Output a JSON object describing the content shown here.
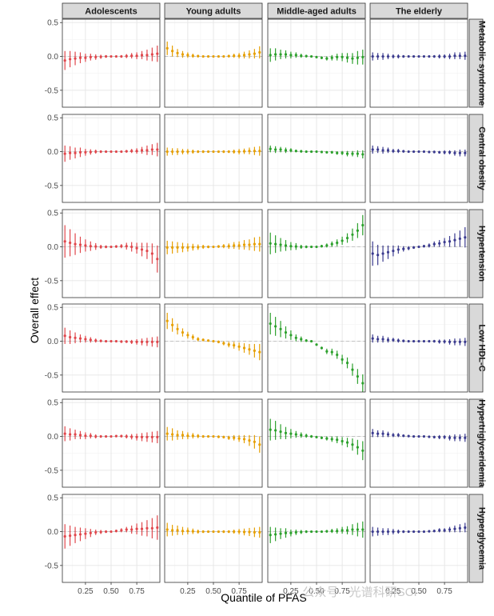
{
  "chart_data": {
    "type": "scatter",
    "title": "",
    "xlabel": "Quantile of PFAS",
    "ylabel": "Overall effect",
    "xlim": [
      0.025,
      0.975
    ],
    "ylim": [
      -0.75,
      0.55
    ],
    "x_ticks": [
      "0.25",
      "0.50",
      "0.75"
    ],
    "y_ticks": [
      "-0.5",
      "0.0",
      "0.5"
    ],
    "grid": true,
    "reference_line": 0,
    "columns": [
      {
        "name": "Adolescents",
        "color": "#E0474C"
      },
      {
        "name": "Young adults",
        "color": "#E69F00"
      },
      {
        "name": "Middle-aged adults",
        "color": "#2CA02C"
      },
      {
        "name": "The elderly",
        "color": "#3B3B8F"
      }
    ],
    "rows": [
      "Metabolic syndrome",
      "Central obesity",
      "Hypertension",
      "Low HDL-C",
      "Hypertriglyceridemia",
      "Hyperglycemia"
    ],
    "x": [
      0.05,
      0.1,
      0.15,
      0.2,
      0.25,
      0.3,
      0.35,
      0.4,
      0.45,
      0.5,
      0.55,
      0.6,
      0.65,
      0.7,
      0.75,
      0.8,
      0.85,
      0.9,
      0.95
    ],
    "panels": [
      {
        "row": "Metabolic syndrome",
        "column": "Adolescents",
        "estimate": [
          -0.06,
          -0.04,
          -0.03,
          -0.02,
          -0.02,
          -0.01,
          -0.01,
          -0.005,
          0,
          0,
          0,
          0,
          0.005,
          0.01,
          0.01,
          0.02,
          0.02,
          0.03,
          0.04
        ],
        "half_width": [
          0.14,
          0.12,
          0.1,
          0.08,
          0.06,
          0.05,
          0.04,
          0.03,
          0.02,
          0.01,
          0.01,
          0.02,
          0.03,
          0.04,
          0.05,
          0.06,
          0.08,
          0.1,
          0.12
        ]
      },
      {
        "row": "Metabolic syndrome",
        "column": "Young adults",
        "estimate": [
          0.12,
          0.08,
          0.05,
          0.03,
          0.02,
          0.01,
          0.005,
          0,
          0,
          0,
          0,
          0,
          0.005,
          0.01,
          0.01,
          0.02,
          0.03,
          0.04,
          0.06
        ],
        "half_width": [
          0.1,
          0.08,
          0.06,
          0.05,
          0.04,
          0.03,
          0.02,
          0.015,
          0.01,
          0.01,
          0.01,
          0.015,
          0.02,
          0.03,
          0.04,
          0.05,
          0.06,
          0.07,
          0.09
        ]
      },
      {
        "row": "Metabolic syndrome",
        "column": "Middle-aged adults",
        "estimate": [
          0.02,
          0.03,
          0.03,
          0.03,
          0.02,
          0.02,
          0.01,
          0.005,
          0,
          -0.01,
          -0.02,
          -0.03,
          -0.02,
          -0.01,
          -0.01,
          -0.02,
          -0.03,
          -0.02,
          -0.01
        ],
        "half_width": [
          0.1,
          0.09,
          0.07,
          0.06,
          0.05,
          0.04,
          0.03,
          0.02,
          0.01,
          0.01,
          0.02,
          0.03,
          0.04,
          0.05,
          0.06,
          0.07,
          0.08,
          0.1,
          0.11
        ]
      },
      {
        "row": "Metabolic syndrome",
        "column": "The elderly",
        "estimate": [
          0,
          0,
          0,
          0,
          0,
          0,
          0,
          0,
          0,
          0,
          0,
          0,
          0,
          0,
          0,
          0,
          0.01,
          0.01,
          0.01
        ],
        "half_width": [
          0.06,
          0.05,
          0.05,
          0.04,
          0.03,
          0.03,
          0.02,
          0.015,
          0.01,
          0.01,
          0.01,
          0.015,
          0.02,
          0.03,
          0.03,
          0.04,
          0.05,
          0.05,
          0.06
        ]
      },
      {
        "row": "Central obesity",
        "column": "Adolescents",
        "estimate": [
          -0.03,
          -0.02,
          -0.02,
          -0.01,
          -0.01,
          -0.005,
          0,
          0,
          0,
          0,
          0,
          0,
          0.005,
          0.01,
          0.01,
          0.02,
          0.02,
          0.03,
          0.03
        ],
        "half_width": [
          0.12,
          0.1,
          0.08,
          0.07,
          0.05,
          0.04,
          0.03,
          0.02,
          0.015,
          0.01,
          0.01,
          0.015,
          0.02,
          0.03,
          0.04,
          0.05,
          0.07,
          0.08,
          0.1
        ]
      },
      {
        "row": "Central obesity",
        "column": "Young adults",
        "estimate": [
          0,
          0,
          0,
          0,
          0,
          0,
          0,
          0,
          0,
          0,
          0,
          0,
          0,
          0,
          0,
          0.005,
          0.01,
          0.01,
          0.01
        ],
        "half_width": [
          0.06,
          0.05,
          0.05,
          0.04,
          0.04,
          0.03,
          0.02,
          0.02,
          0.01,
          0.01,
          0.01,
          0.02,
          0.02,
          0.03,
          0.04,
          0.04,
          0.05,
          0.06,
          0.07
        ]
      },
      {
        "row": "Central obesity",
        "column": "Middle-aged adults",
        "estimate": [
          0.04,
          0.03,
          0.03,
          0.02,
          0.02,
          0.01,
          0.005,
          0,
          0,
          0,
          -0.005,
          -0.01,
          -0.01,
          -0.02,
          -0.02,
          -0.03,
          -0.03,
          -0.03,
          -0.04
        ],
        "half_width": [
          0.05,
          0.05,
          0.04,
          0.04,
          0.03,
          0.02,
          0.02,
          0.015,
          0.01,
          0.01,
          0.01,
          0.015,
          0.02,
          0.025,
          0.03,
          0.04,
          0.04,
          0.05,
          0.06
        ]
      },
      {
        "row": "Central obesity",
        "column": "The elderly",
        "estimate": [
          0.03,
          0.03,
          0.02,
          0.02,
          0.01,
          0.01,
          0.005,
          0,
          0,
          0,
          0,
          -0.005,
          -0.005,
          -0.01,
          -0.01,
          -0.01,
          -0.02,
          -0.02,
          -0.02
        ],
        "half_width": [
          0.06,
          0.05,
          0.05,
          0.04,
          0.03,
          0.03,
          0.02,
          0.015,
          0.01,
          0.01,
          0.01,
          0.015,
          0.02,
          0.02,
          0.03,
          0.03,
          0.04,
          0.05,
          0.05
        ]
      },
      {
        "row": "Hypertension",
        "column": "Adolescents",
        "estimate": [
          0.08,
          0.06,
          0.04,
          0.03,
          0.02,
          0.01,
          0.005,
          0,
          0,
          0,
          0.005,
          0.01,
          0.01,
          0,
          -0.02,
          -0.04,
          -0.06,
          -0.1,
          -0.18
        ],
        "half_width": [
          0.24,
          0.2,
          0.16,
          0.12,
          0.09,
          0.07,
          0.05,
          0.03,
          0.02,
          0.01,
          0.02,
          0.03,
          0.05,
          0.07,
          0.08,
          0.1,
          0.12,
          0.15,
          0.2
        ]
      },
      {
        "row": "Hypertension",
        "column": "Young adults",
        "estimate": [
          -0.01,
          -0.01,
          -0.01,
          -0.01,
          -0.01,
          -0.005,
          -0.005,
          0,
          0,
          0,
          0.005,
          0.01,
          0.01,
          0.02,
          0.02,
          0.03,
          0.03,
          0.04,
          0.04
        ],
        "half_width": [
          0.1,
          0.09,
          0.08,
          0.07,
          0.06,
          0.05,
          0.04,
          0.03,
          0.02,
          0.01,
          0.02,
          0.03,
          0.04,
          0.05,
          0.06,
          0.07,
          0.08,
          0.1,
          0.11
        ]
      },
      {
        "row": "Hypertension",
        "column": "Middle-aged adults",
        "estimate": [
          0.05,
          0.04,
          0.03,
          0.02,
          0.01,
          0.005,
          0,
          0,
          0,
          0,
          0.01,
          0.02,
          0.04,
          0.06,
          0.09,
          0.13,
          0.18,
          0.24,
          0.32
        ],
        "half_width": [
          0.16,
          0.13,
          0.1,
          0.08,
          0.06,
          0.05,
          0.03,
          0.02,
          0.01,
          0.01,
          0.02,
          0.03,
          0.04,
          0.05,
          0.06,
          0.07,
          0.09,
          0.11,
          0.15
        ]
      },
      {
        "row": "Hypertension",
        "column": "The elderly",
        "estimate": [
          -0.1,
          -0.12,
          -0.1,
          -0.08,
          -0.06,
          -0.04,
          -0.03,
          -0.02,
          -0.01,
          0,
          0.01,
          0.02,
          0.04,
          0.05,
          0.07,
          0.08,
          0.1,
          0.12,
          0.14
        ],
        "half_width": [
          0.18,
          0.15,
          0.12,
          0.1,
          0.08,
          0.06,
          0.04,
          0.03,
          0.02,
          0.01,
          0.02,
          0.03,
          0.04,
          0.05,
          0.06,
          0.08,
          0.1,
          0.12,
          0.15
        ]
      },
      {
        "row": "Low HDL-C",
        "column": "Adolescents",
        "estimate": [
          0.08,
          0.06,
          0.05,
          0.04,
          0.03,
          0.02,
          0.01,
          0.005,
          0,
          0,
          0,
          -0.005,
          -0.005,
          -0.01,
          -0.01,
          -0.01,
          -0.01,
          -0.01,
          -0.01
        ],
        "half_width": [
          0.12,
          0.1,
          0.08,
          0.06,
          0.05,
          0.04,
          0.03,
          0.02,
          0.01,
          0.01,
          0.01,
          0.02,
          0.02,
          0.03,
          0.04,
          0.05,
          0.06,
          0.07,
          0.08
        ]
      },
      {
        "row": "Low HDL-C",
        "column": "Young adults",
        "estimate": [
          0.3,
          0.24,
          0.18,
          0.13,
          0.09,
          0.06,
          0.03,
          0.02,
          0.01,
          0,
          -0.01,
          -0.03,
          -0.05,
          -0.06,
          -0.08,
          -0.1,
          -0.12,
          -0.14,
          -0.16
        ],
        "half_width": [
          0.12,
          0.1,
          0.08,
          0.06,
          0.05,
          0.04,
          0.03,
          0.02,
          0.01,
          0.01,
          0.02,
          0.03,
          0.04,
          0.05,
          0.06,
          0.07,
          0.08,
          0.1,
          0.12
        ]
      },
      {
        "row": "Low HDL-C",
        "column": "Middle-aged adults",
        "estimate": [
          0.26,
          0.22,
          0.18,
          0.13,
          0.09,
          0.05,
          0.03,
          0.01,
          0,
          -0.05,
          -0.1,
          -0.15,
          -0.16,
          -0.2,
          -0.27,
          -0.32,
          -0.42,
          -0.52,
          -0.62
        ],
        "half_width": [
          0.16,
          0.14,
          0.12,
          0.09,
          0.07,
          0.05,
          0.04,
          0.02,
          0.01,
          0.01,
          0.02,
          0.04,
          0.05,
          0.06,
          0.07,
          0.08,
          0.09,
          0.11,
          0.13
        ]
      },
      {
        "row": "Low HDL-C",
        "column": "The elderly",
        "estimate": [
          0.04,
          0.03,
          0.03,
          0.02,
          0.02,
          0.01,
          0.005,
          0,
          0,
          0,
          0,
          0,
          0,
          -0.005,
          -0.005,
          -0.01,
          -0.01,
          -0.01,
          -0.01
        ],
        "half_width": [
          0.06,
          0.05,
          0.05,
          0.04,
          0.03,
          0.03,
          0.02,
          0.015,
          0.01,
          0.01,
          0.01,
          0.015,
          0.02,
          0.03,
          0.03,
          0.04,
          0.05,
          0.05,
          0.06
        ]
      },
      {
        "row": "Hypertriglyceridemia",
        "column": "Adolescents",
        "estimate": [
          0.04,
          0.03,
          0.03,
          0.02,
          0.01,
          0.01,
          0,
          0,
          0,
          0,
          0.005,
          0.005,
          0,
          -0.005,
          -0.01,
          -0.01,
          -0.01,
          -0.01,
          -0.01
        ],
        "half_width": [
          0.11,
          0.09,
          0.07,
          0.06,
          0.05,
          0.04,
          0.03,
          0.02,
          0.01,
          0.01,
          0.01,
          0.02,
          0.03,
          0.04,
          0.05,
          0.06,
          0.07,
          0.08,
          0.09
        ]
      },
      {
        "row": "Hypertriglyceridemia",
        "column": "Young adults",
        "estimate": [
          0.04,
          0.03,
          0.02,
          0.02,
          0.01,
          0.01,
          0.005,
          0,
          0,
          0,
          -0.005,
          -0.01,
          -0.02,
          -0.02,
          -0.03,
          -0.04,
          -0.06,
          -0.08,
          -0.12
        ],
        "half_width": [
          0.1,
          0.09,
          0.07,
          0.06,
          0.05,
          0.04,
          0.03,
          0.02,
          0.01,
          0.01,
          0.02,
          0.02,
          0.03,
          0.04,
          0.05,
          0.06,
          0.08,
          0.1,
          0.12
        ]
      },
      {
        "row": "Hypertriglyceridemia",
        "column": "Middle-aged adults",
        "estimate": [
          0.1,
          0.09,
          0.07,
          0.05,
          0.04,
          0.03,
          0.02,
          0.01,
          0,
          -0.01,
          -0.02,
          -0.03,
          -0.04,
          -0.05,
          -0.07,
          -0.09,
          -0.12,
          -0.16,
          -0.21
        ],
        "half_width": [
          0.16,
          0.14,
          0.11,
          0.09,
          0.07,
          0.05,
          0.04,
          0.03,
          0.02,
          0.01,
          0.02,
          0.03,
          0.04,
          0.05,
          0.06,
          0.07,
          0.09,
          0.11,
          0.14
        ]
      },
      {
        "row": "Hypertriglyceridemia",
        "column": "The elderly",
        "estimate": [
          0.05,
          0.04,
          0.04,
          0.03,
          0.02,
          0.02,
          0.01,
          0.005,
          0,
          0,
          0,
          -0.005,
          -0.01,
          -0.01,
          -0.01,
          -0.02,
          -0.02,
          -0.02,
          -0.02
        ],
        "half_width": [
          0.06,
          0.05,
          0.05,
          0.04,
          0.03,
          0.03,
          0.02,
          0.015,
          0.01,
          0.01,
          0.01,
          0.015,
          0.02,
          0.03,
          0.03,
          0.04,
          0.05,
          0.05,
          0.06
        ]
      },
      {
        "row": "Hyperglycemia",
        "column": "Adolescents",
        "estimate": [
          -0.07,
          -0.06,
          -0.05,
          -0.04,
          -0.03,
          -0.02,
          -0.01,
          -0.005,
          0,
          0,
          0.01,
          0.02,
          0.03,
          0.03,
          0.04,
          0.04,
          0.05,
          0.05,
          0.06
        ],
        "half_width": [
          0.18,
          0.15,
          0.12,
          0.1,
          0.08,
          0.06,
          0.04,
          0.03,
          0.02,
          0.01,
          0.02,
          0.03,
          0.04,
          0.06,
          0.08,
          0.1,
          0.12,
          0.15,
          0.18
        ]
      },
      {
        "row": "Hyperglycemia",
        "column": "Young adults",
        "estimate": [
          0.03,
          0.02,
          0.02,
          0.01,
          0.01,
          0.005,
          0,
          0,
          0,
          0,
          0,
          0,
          0,
          0,
          0,
          -0.005,
          -0.005,
          -0.01,
          -0.01
        ],
        "half_width": [
          0.1,
          0.08,
          0.07,
          0.06,
          0.05,
          0.04,
          0.03,
          0.02,
          0.01,
          0.01,
          0.01,
          0.02,
          0.02,
          0.03,
          0.04,
          0.05,
          0.06,
          0.07,
          0.08
        ]
      },
      {
        "row": "Hyperglycemia",
        "column": "Middle-aged adults",
        "estimate": [
          -0.05,
          -0.04,
          -0.03,
          -0.02,
          -0.02,
          -0.01,
          -0.005,
          0,
          0,
          0,
          0,
          0.005,
          0.01,
          0.01,
          0.02,
          0.02,
          0.03,
          0.03,
          0.03
        ],
        "half_width": [
          0.12,
          0.1,
          0.08,
          0.07,
          0.05,
          0.04,
          0.03,
          0.02,
          0.01,
          0.01,
          0.01,
          0.02,
          0.03,
          0.04,
          0.05,
          0.06,
          0.08,
          0.1,
          0.12
        ]
      },
      {
        "row": "Hyperglycemia",
        "column": "The elderly",
        "estimate": [
          0,
          0,
          0,
          0,
          0,
          0,
          0,
          0,
          0,
          0,
          0,
          0.005,
          0.01,
          0.02,
          0.02,
          0.03,
          0.04,
          0.05,
          0.06
        ],
        "half_width": [
          0.07,
          0.06,
          0.05,
          0.05,
          0.04,
          0.03,
          0.02,
          0.015,
          0.01,
          0.01,
          0.01,
          0.015,
          0.02,
          0.03,
          0.03,
          0.04,
          0.05,
          0.06,
          0.07
        ]
      }
    ]
  },
  "watermark": "公众号 · 光谱科研SCI"
}
